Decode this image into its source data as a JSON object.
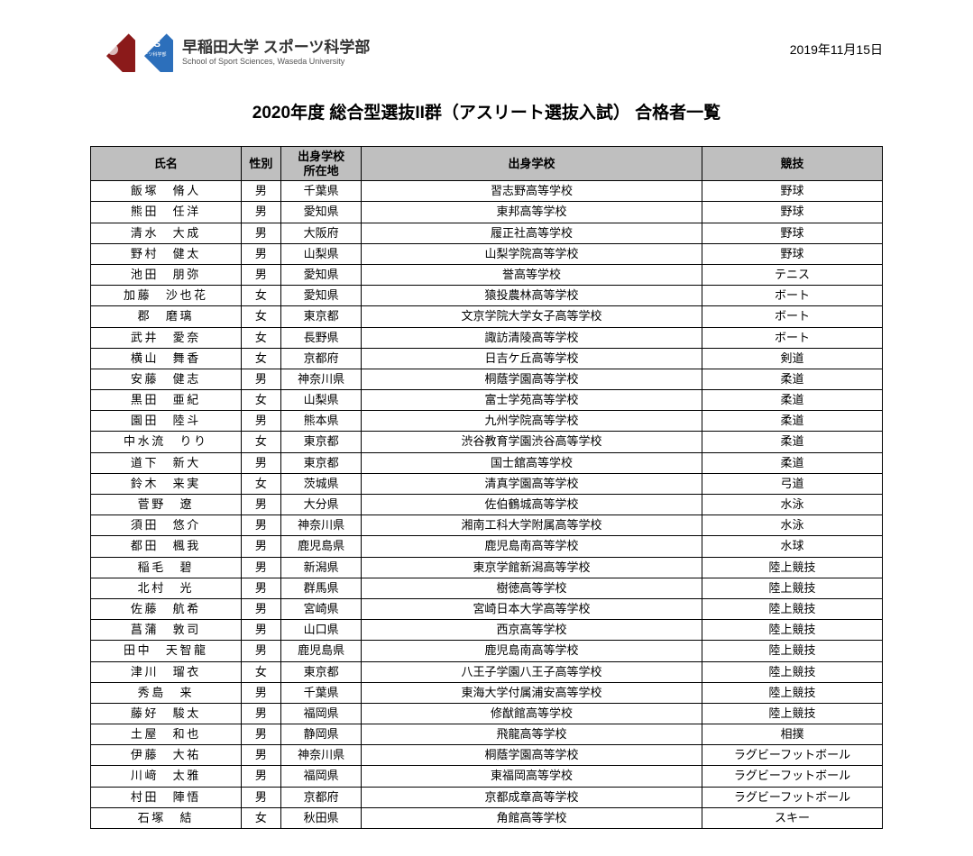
{
  "header": {
    "uni_name_jp": "早稲田大学 スポーツ科学部",
    "uni_name_en": "School of Sport Sciences, Waseda University",
    "date": "2019年11月15日",
    "logo_text": "SPS",
    "logo_subtext": "スポーツ科学部"
  },
  "title": "2020年度 総合型選抜II群（アスリート選抜入試） 合格者一覧",
  "table": {
    "headers": {
      "name": "氏名",
      "gender": "性別",
      "prefecture": "出身学校\n所在地",
      "school": "出身学校",
      "sport": "競技"
    },
    "rows": [
      {
        "name": "飯塚　脩人",
        "gender": "男",
        "prefecture": "千葉県",
        "school": "習志野高等学校",
        "sport": "野球"
      },
      {
        "name": "熊田　任洋",
        "gender": "男",
        "prefecture": "愛知県",
        "school": "東邦高等学校",
        "sport": "野球"
      },
      {
        "name": "清水　大成",
        "gender": "男",
        "prefecture": "大阪府",
        "school": "履正社高等学校",
        "sport": "野球"
      },
      {
        "name": "野村　健太",
        "gender": "男",
        "prefecture": "山梨県",
        "school": "山梨学院高等学校",
        "sport": "野球"
      },
      {
        "name": "池田　朋弥",
        "gender": "男",
        "prefecture": "愛知県",
        "school": "誉高等学校",
        "sport": "テニス"
      },
      {
        "name": "加藤　沙也花",
        "gender": "女",
        "prefecture": "愛知県",
        "school": "猿投農林高等学校",
        "sport": "ボート"
      },
      {
        "name": "郡　磨璃",
        "gender": "女",
        "prefecture": "東京都",
        "school": "文京学院大学女子高等学校",
        "sport": "ボート"
      },
      {
        "name": "武井　愛奈",
        "gender": "女",
        "prefecture": "長野県",
        "school": "諏訪清陵高等学校",
        "sport": "ボート"
      },
      {
        "name": "横山　舞香",
        "gender": "女",
        "prefecture": "京都府",
        "school": "日吉ケ丘高等学校",
        "sport": "剣道"
      },
      {
        "name": "安藤　健志",
        "gender": "男",
        "prefecture": "神奈川県",
        "school": "桐蔭学園高等学校",
        "sport": "柔道"
      },
      {
        "name": "黒田　亜紀",
        "gender": "女",
        "prefecture": "山梨県",
        "school": "富士学苑高等学校",
        "sport": "柔道"
      },
      {
        "name": "園田　陸斗",
        "gender": "男",
        "prefecture": "熊本県",
        "school": "九州学院高等学校",
        "sport": "柔道"
      },
      {
        "name": "中水流　りり",
        "gender": "女",
        "prefecture": "東京都",
        "school": "渋谷教育学園渋谷高等学校",
        "sport": "柔道"
      },
      {
        "name": "道下　新大",
        "gender": "男",
        "prefecture": "東京都",
        "school": "国士舘高等学校",
        "sport": "柔道"
      },
      {
        "name": "鈴木　来実",
        "gender": "女",
        "prefecture": "茨城県",
        "school": "清真学園高等学校",
        "sport": "弓道"
      },
      {
        "name": "菅野　遼",
        "gender": "男",
        "prefecture": "大分県",
        "school": "佐伯鶴城高等学校",
        "sport": "水泳"
      },
      {
        "name": "須田　悠介",
        "gender": "男",
        "prefecture": "神奈川県",
        "school": "湘南工科大学附属高等学校",
        "sport": "水泳"
      },
      {
        "name": "都田　楓我",
        "gender": "男",
        "prefecture": "鹿児島県",
        "school": "鹿児島南高等学校",
        "sport": "水球"
      },
      {
        "name": "稲毛　碧",
        "gender": "男",
        "prefecture": "新潟県",
        "school": "東京学館新潟高等学校",
        "sport": "陸上競技"
      },
      {
        "name": "北村　光",
        "gender": "男",
        "prefecture": "群馬県",
        "school": "樹徳高等学校",
        "sport": "陸上競技"
      },
      {
        "name": "佐藤　航希",
        "gender": "男",
        "prefecture": "宮崎県",
        "school": "宮崎日本大学高等学校",
        "sport": "陸上競技"
      },
      {
        "name": "菖蒲　敦司",
        "gender": "男",
        "prefecture": "山口県",
        "school": "西京高等学校",
        "sport": "陸上競技"
      },
      {
        "name": "田中　天智龍",
        "gender": "男",
        "prefecture": "鹿児島県",
        "school": "鹿児島南高等学校",
        "sport": "陸上競技"
      },
      {
        "name": "津川　瑠衣",
        "gender": "女",
        "prefecture": "東京都",
        "school": "八王子学園八王子高等学校",
        "sport": "陸上競技"
      },
      {
        "name": "秀島　来",
        "gender": "男",
        "prefecture": "千葉県",
        "school": "東海大学付属浦安高等学校",
        "sport": "陸上競技"
      },
      {
        "name": "藤好　駿太",
        "gender": "男",
        "prefecture": "福岡県",
        "school": "修猷館高等学校",
        "sport": "陸上競技"
      },
      {
        "name": "土屋　和也",
        "gender": "男",
        "prefecture": "静岡県",
        "school": "飛龍高等学校",
        "sport": "相撲"
      },
      {
        "name": "伊藤　大祐",
        "gender": "男",
        "prefecture": "神奈川県",
        "school": "桐蔭学園高等学校",
        "sport": "ラグビーフットボール"
      },
      {
        "name": "川﨑　太雅",
        "gender": "男",
        "prefecture": "福岡県",
        "school": "東福岡高等学校",
        "sport": "ラグビーフットボール"
      },
      {
        "name": "村田　陣悟",
        "gender": "男",
        "prefecture": "京都府",
        "school": "京都成章高等学校",
        "sport": "ラグビーフットボール"
      },
      {
        "name": "石塚　結",
        "gender": "女",
        "prefecture": "秋田県",
        "school": "角館高等学校",
        "sport": "スキー"
      }
    ]
  }
}
